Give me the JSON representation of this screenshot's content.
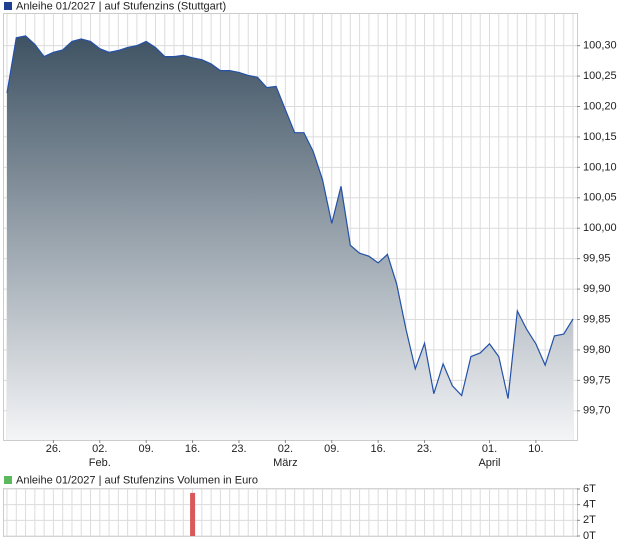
{
  "chart_data": [
    {
      "type": "area",
      "legend": "Anleihe 01/2027 | auf Stufenzins (Stuttgart)",
      "legend_color": "#1f3f8f",
      "color": "#2451a8",
      "fill_top": "#3e5263",
      "fill_bottom": "#f4f5f7",
      "grid": true,
      "categories": [
        null,
        null,
        null,
        null,
        null,
        "26.",
        null,
        null,
        null,
        null,
        "02.",
        null,
        null,
        null,
        null,
        "09.",
        null,
        null,
        null,
        null,
        "16.",
        null,
        null,
        null,
        null,
        "23.",
        null,
        null,
        null,
        null,
        "02.",
        null,
        null,
        null,
        null,
        "09.",
        null,
        null,
        null,
        null,
        "16.",
        null,
        null,
        null,
        null,
        "23.",
        null,
        null,
        null,
        null,
        null,
        null,
        "01.",
        null,
        null,
        null,
        null,
        "10.",
        null,
        null,
        null,
        null
      ],
      "months": [
        null,
        null,
        null,
        null,
        null,
        null,
        null,
        null,
        null,
        null,
        "Feb.",
        null,
        null,
        null,
        null,
        null,
        null,
        null,
        null,
        null,
        null,
        null,
        null,
        null,
        null,
        null,
        null,
        null,
        null,
        null,
        "März",
        null,
        null,
        null,
        null,
        null,
        null,
        null,
        null,
        null,
        null,
        null,
        null,
        null,
        null,
        null,
        null,
        null,
        null,
        null,
        null,
        null,
        "April",
        null,
        null,
        null,
        null,
        null,
        null,
        null,
        null,
        null
      ],
      "values": [
        100.222,
        100.313,
        100.316,
        100.302,
        100.282,
        100.289,
        100.293,
        100.307,
        100.311,
        100.307,
        100.295,
        100.289,
        100.292,
        100.297,
        100.3,
        100.307,
        100.297,
        100.282,
        100.282,
        100.284,
        100.28,
        100.277,
        100.27,
        100.259,
        100.259,
        100.256,
        100.251,
        100.248,
        100.231,
        100.233,
        100.195,
        100.157,
        100.157,
        100.126,
        100.08,
        100.008,
        100.069,
        99.972,
        99.959,
        99.954,
        99.943,
        99.957,
        99.908,
        99.834,
        99.769,
        99.811,
        99.728,
        99.777,
        99.741,
        99.725,
        99.789,
        99.795,
        99.81,
        99.789,
        99.72,
        99.864,
        99.834,
        99.81,
        99.775,
        99.823,
        99.826,
        99.851
      ],
      "ylim": [
        99.652,
        100.352
      ],
      "yticks": [
        {
          "value": 99.7,
          "label": "99,70"
        },
        {
          "value": 99.75,
          "label": "99,75"
        },
        {
          "value": 99.8,
          "label": "99,80"
        },
        {
          "value": 99.85,
          "label": "99,85"
        },
        {
          "value": 99.9,
          "label": "99,90"
        },
        {
          "value": 99.95,
          "label": "99,95"
        },
        {
          "value": 100.0,
          "label": "100,00"
        },
        {
          "value": 100.05,
          "label": "100,05"
        },
        {
          "value": 100.1,
          "label": "100,10"
        },
        {
          "value": 100.15,
          "label": "100,15"
        },
        {
          "value": 100.2,
          "label": "100,20"
        },
        {
          "value": 100.25,
          "label": "100,25"
        },
        {
          "value": 100.3,
          "label": "100,30"
        }
      ]
    },
    {
      "type": "bar",
      "legend": "Anleihe 01/2027 | auf Stufenzins Volumen in Euro",
      "legend_color": "#5cb85c",
      "color": "#d9595b",
      "grid": true,
      "values": [
        null,
        null,
        null,
        null,
        null,
        null,
        null,
        null,
        null,
        null,
        null,
        null,
        null,
        null,
        null,
        null,
        null,
        null,
        null,
        null,
        5500,
        null,
        null,
        null,
        null,
        null,
        null,
        null,
        null,
        null,
        null,
        null,
        null,
        null,
        null,
        null,
        null,
        null,
        null,
        null,
        null,
        null,
        null,
        null,
        null,
        null,
        null,
        null,
        null,
        null,
        null,
        null,
        null,
        null,
        null,
        null,
        null,
        null,
        null,
        null,
        null,
        null
      ],
      "ylim": [
        0,
        6000
      ],
      "yticks": [
        {
          "value": 0,
          "label": "0T"
        },
        {
          "value": 2000,
          "label": "2T"
        },
        {
          "value": 4000,
          "label": "4T"
        },
        {
          "value": 6000,
          "label": "6T"
        }
      ]
    }
  ]
}
